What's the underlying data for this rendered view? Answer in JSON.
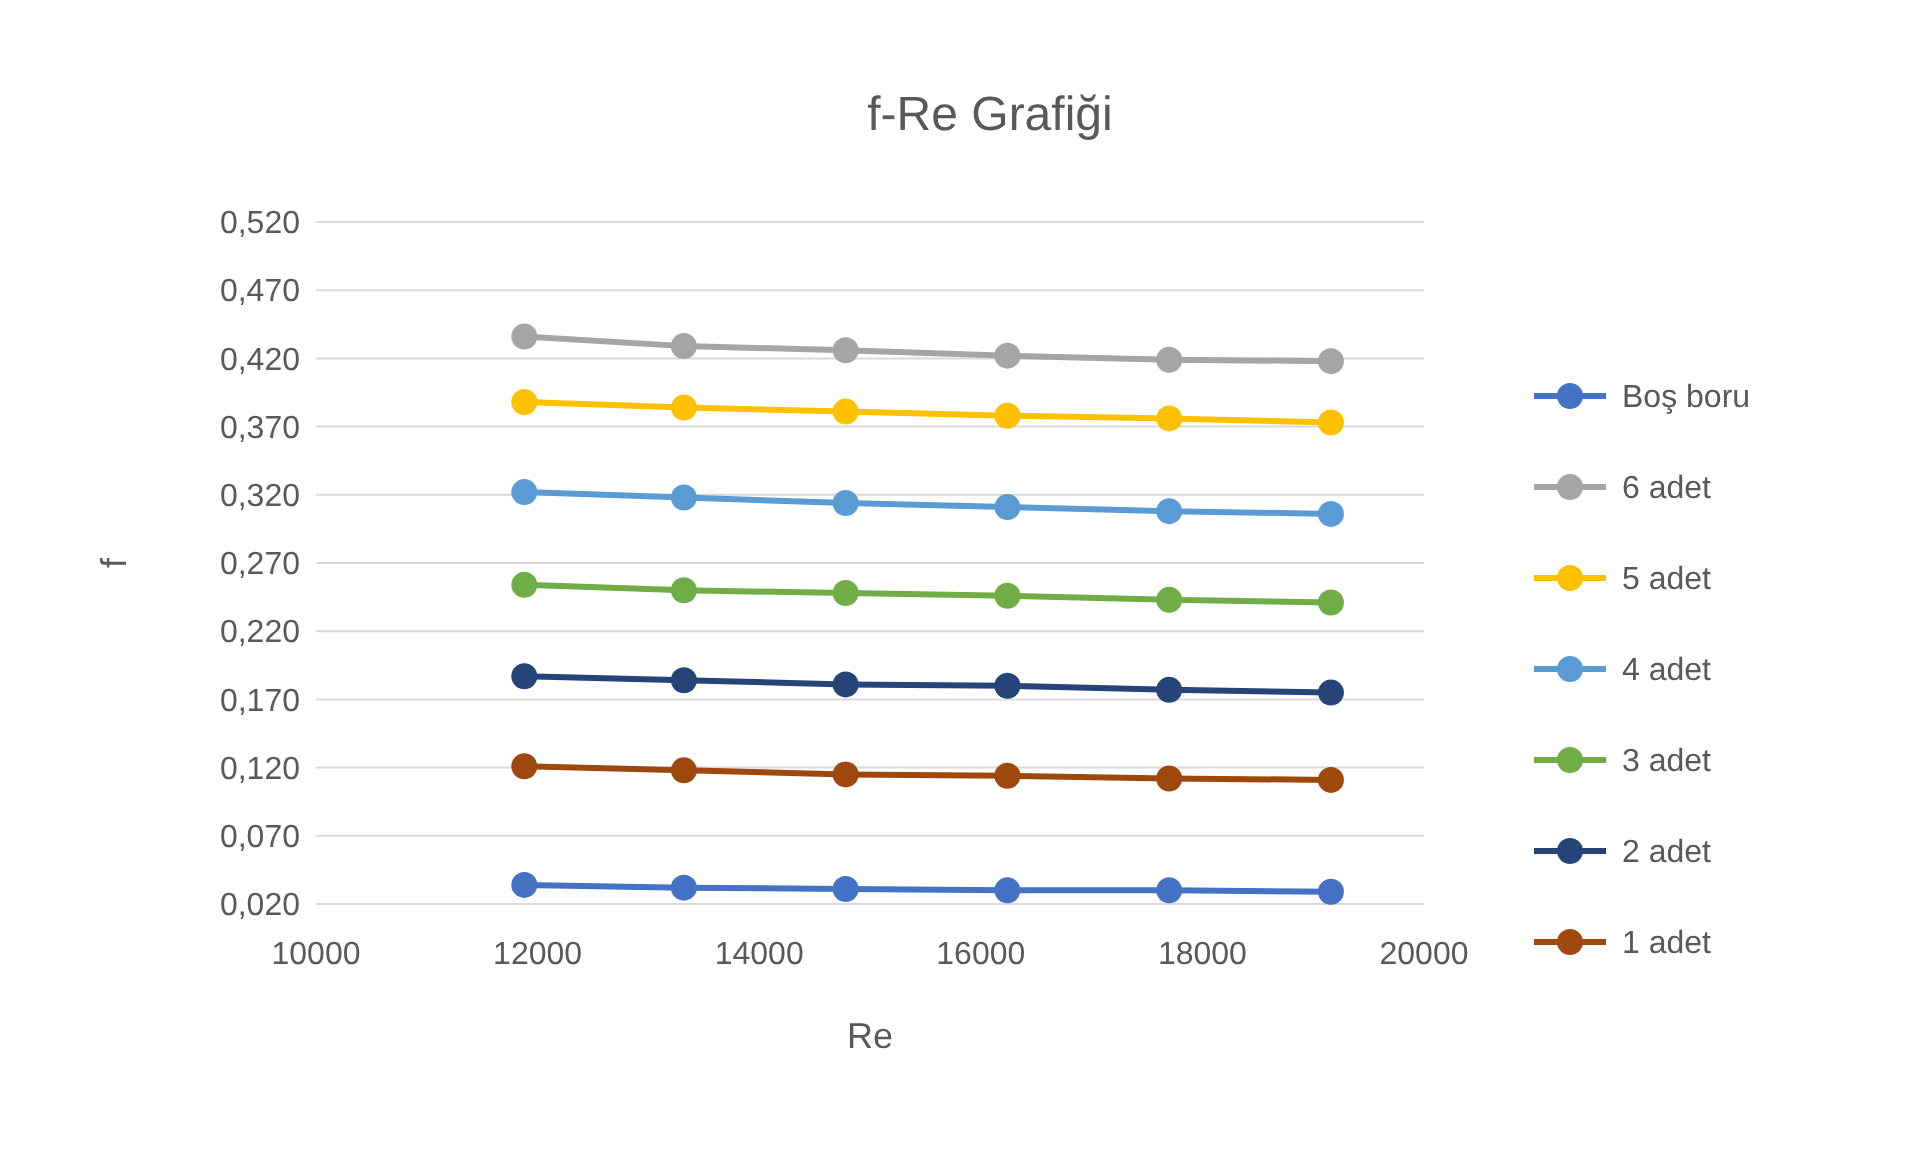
{
  "chart_data": {
    "type": "line",
    "title": "f-Re Grafiği",
    "xlabel": "Re",
    "ylabel": "f",
    "x": [
      11880,
      13320,
      14780,
      16240,
      17700,
      19160
    ],
    "xlim": [
      10000,
      20000
    ],
    "xticks": [
      10000,
      12000,
      14000,
      16000,
      18000,
      20000
    ],
    "ylim": [
      0.02,
      0.52
    ],
    "yticks": [
      {
        "value": 0.02,
        "label": "0,020"
      },
      {
        "value": 0.07,
        "label": "0,070"
      },
      {
        "value": 0.12,
        "label": "0,120"
      },
      {
        "value": 0.17,
        "label": "0,170"
      },
      {
        "value": 0.22,
        "label": "0,220"
      },
      {
        "value": 0.27,
        "label": "0,270"
      },
      {
        "value": 0.32,
        "label": "0,320"
      },
      {
        "value": 0.37,
        "label": "0,370"
      },
      {
        "value": 0.42,
        "label": "0,420"
      },
      {
        "value": 0.47,
        "label": "0,470"
      },
      {
        "value": 0.52,
        "label": "0,520"
      }
    ],
    "grid": "y",
    "legend": "right",
    "marker": "circle",
    "line_style": "solid",
    "series": [
      {
        "name": "Boş boru",
        "color": "#4472c4",
        "values": [
          0.034,
          0.032,
          0.031,
          0.03,
          0.03,
          0.029
        ]
      },
      {
        "name": "6 adet",
        "color": "#a5a5a5",
        "values": [
          0.436,
          0.429,
          0.426,
          0.422,
          0.419,
          0.418
        ]
      },
      {
        "name": "5 adet",
        "color": "#ffc000",
        "values": [
          0.388,
          0.384,
          0.381,
          0.378,
          0.376,
          0.373
        ]
      },
      {
        "name": "4 adet",
        "color": "#5b9bd5",
        "values": [
          0.322,
          0.318,
          0.314,
          0.311,
          0.308,
          0.306
        ]
      },
      {
        "name": "3 adet",
        "color": "#70ad47",
        "values": [
          0.254,
          0.25,
          0.248,
          0.246,
          0.243,
          0.241
        ]
      },
      {
        "name": "2 adet",
        "color": "#264478",
        "values": [
          0.187,
          0.184,
          0.181,
          0.18,
          0.177,
          0.175
        ]
      },
      {
        "name": "1 adet",
        "color": "#9e480e",
        "values": [
          0.121,
          0.118,
          0.115,
          0.114,
          0.112,
          0.111
        ]
      }
    ]
  }
}
